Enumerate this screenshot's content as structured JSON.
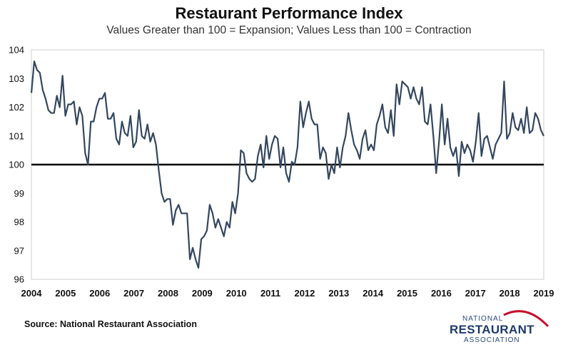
{
  "title": "Restaurant Performance Index",
  "subtitle": "Values Greater than 100 = Expansion; Values Less than 100 = Contraction",
  "source": "Source: National Restaurant Association",
  "logo": {
    "line1": "NATIONAL",
    "line2": "RESTAURANT",
    "line3": "ASSOCIATION"
  },
  "colors": {
    "line": "#34475f",
    "baseline": "#000000",
    "logo_arc": "#c8102e",
    "logo_text": "#1e3a6e"
  },
  "chart_data": {
    "type": "line",
    "title": "Restaurant Performance Index",
    "subtitle": "Values Greater than 100 = Expansion; Values Less than 100 = Contraction",
    "xlabel": "",
    "ylabel": "",
    "x_range": [
      2004,
      2019
    ],
    "ylim": [
      96,
      104
    ],
    "y_ticks": [
      96,
      97,
      98,
      99,
      100,
      101,
      102,
      103,
      104
    ],
    "x_ticks": [
      2004,
      2005,
      2006,
      2007,
      2008,
      2009,
      2010,
      2011,
      2012,
      2013,
      2014,
      2015,
      2016,
      2017,
      2018,
      2019
    ],
    "reference_line": 100,
    "grid": false,
    "series": [
      {
        "values": [
          102.5,
          103.6,
          103.3,
          103.2,
          102.6,
          102.3,
          101.9,
          101.8,
          101.8,
          102.4,
          102.0,
          103.1,
          101.7,
          102.1,
          102.1,
          102.2,
          101.4,
          102.0,
          101.7,
          100.4,
          100.0,
          101.5,
          101.5,
          102.0,
          102.3,
          102.3,
          102.5,
          101.6,
          101.6,
          101.8,
          100.9,
          100.7,
          101.5,
          101.1,
          101.0,
          101.7,
          100.6,
          100.8,
          101.9,
          101.0,
          100.9,
          101.4,
          100.8,
          101.1,
          100.7,
          99.8,
          99.0,
          98.7,
          98.8,
          98.8,
          97.9,
          98.4,
          98.6,
          98.3,
          98.3,
          98.3,
          96.7,
          97.1,
          96.7,
          96.4,
          97.4,
          97.5,
          97.7,
          98.6,
          98.3,
          97.8,
          98.1,
          97.8,
          97.5,
          98.0,
          97.8,
          98.7,
          98.3,
          99.0,
          100.5,
          100.4,
          99.7,
          99.5,
          99.4,
          99.5,
          100.3,
          100.7,
          99.9,
          101.0,
          100.2,
          100.7,
          101.0,
          100.9,
          99.9,
          100.6,
          99.7,
          99.4,
          100.1,
          100.0,
          100.6,
          102.2,
          101.3,
          101.8,
          102.2,
          101.6,
          101.4,
          101.4,
          100.2,
          100.6,
          100.4,
          99.5,
          100.0,
          99.7,
          100.6,
          99.9,
          100.6,
          101.0,
          101.8,
          101.2,
          100.7,
          100.5,
          100.2,
          100.9,
          101.2,
          100.5,
          100.7,
          100.5,
          101.4,
          101.7,
          102.1,
          101.3,
          101.1,
          101.9,
          101.0,
          102.8,
          102.1,
          102.9,
          102.8,
          102.7,
          102.3,
          102.7,
          102.3,
          102.1,
          102.7,
          101.5,
          101.4,
          102.1,
          101.0,
          99.7,
          100.8,
          102.1,
          100.7,
          101.6,
          100.6,
          100.3,
          100.6,
          99.6,
          100.8,
          100.4,
          100.7,
          100.5,
          100.1,
          100.8,
          101.8,
          100.3,
          100.9,
          101.0,
          100.6,
          100.2,
          100.7,
          100.9,
          101.1,
          102.9,
          100.9,
          101.1,
          101.8,
          101.3,
          101.2,
          101.6,
          101.1,
          102.0,
          101.1,
          101.2,
          101.8,
          101.6,
          101.2,
          101.0
        ]
      }
    ]
  }
}
